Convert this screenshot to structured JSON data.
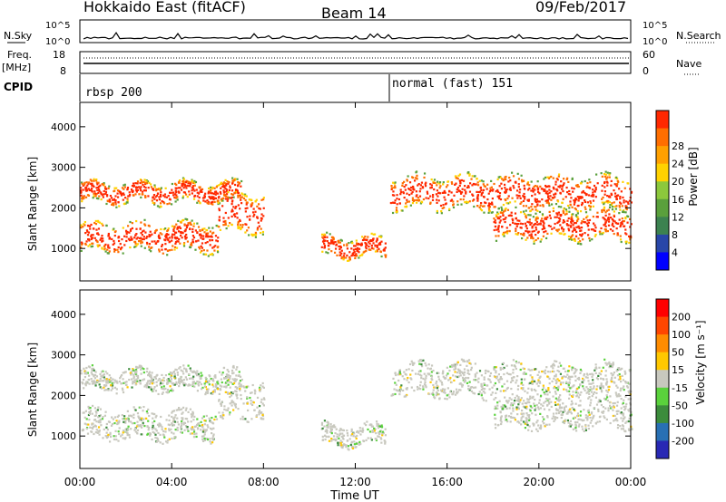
{
  "header": {
    "station": "Hokkaido East (fitACF)",
    "beam": "Beam 14",
    "date": "09/Feb/2017"
  },
  "noise_panel": {
    "left_label": "N.Sky",
    "right_label": "N.Search",
    "left_ticks": [
      "10^5",
      "10^0"
    ],
    "right_ticks": [
      "10^5",
      "10^0"
    ]
  },
  "freq_panel": {
    "left_label_1": "Freq.",
    "left_label_2": "[MHz]",
    "right_label": "Nave",
    "left_ticks": [
      "18",
      "8"
    ],
    "right_ticks": [
      "60",
      "0"
    ]
  },
  "cpid": {
    "label": "CPID",
    "modes": [
      {
        "name": "rbsp 200",
        "start_hour": 0
      },
      {
        "name": "normal (fast) 151",
        "start_hour": 13.5
      }
    ]
  },
  "chart_data": [
    {
      "type": "heatmap",
      "panel": "power",
      "ylabel": "Slant Range [km]",
      "y_ticks": [
        "1000",
        "2000",
        "3000",
        "4000"
      ],
      "ylim": [
        200,
        4600
      ],
      "xlim_hours": [
        0,
        24
      ],
      "colorbar": {
        "title": "Power [dB]",
        "tick_labels": [
          "4",
          "8",
          "12",
          "16",
          "20",
          "24",
          "28"
        ],
        "colors": [
          "#0000ff",
          "#2846a8",
          "#3c8250",
          "#5aa03c",
          "#8cc83c",
          "#ffd200",
          "#ffa000",
          "#ff6e00",
          "#ff2800"
        ]
      },
      "echo_bands": [
        {
          "from": 0.0,
          "to": 6.0,
          "center": 1300,
          "width": 350
        },
        {
          "from": 0.0,
          "to": 7.0,
          "center": 2400,
          "width": 250
        },
        {
          "from": 6.0,
          "to": 8.0,
          "center": 1900,
          "width": 500
        },
        {
          "from": 10.5,
          "to": 13.3,
          "center": 1050,
          "width": 250
        },
        {
          "from": 13.5,
          "to": 24.0,
          "center": 2400,
          "width": 400
        },
        {
          "from": 18.0,
          "to": 24.0,
          "center": 1600,
          "width": 350
        }
      ]
    },
    {
      "type": "heatmap",
      "panel": "velocity",
      "ylabel": "Slant Range [km]",
      "y_ticks": [
        "1000",
        "2000",
        "3000",
        "4000"
      ],
      "ylim": [
        200,
        4600
      ],
      "xlim_hours": [
        0,
        24
      ],
      "colorbar": {
        "title": "Velocity [m s⁻¹]",
        "tick_labels": [
          "200",
          "100",
          "50",
          "15",
          "-15",
          "-50",
          "-100",
          "-200"
        ],
        "colors": [
          "#2828b4",
          "#2870b4",
          "#3c8c3c",
          "#5ad23c",
          "#c8c8be",
          "#ffc800",
          "#ff8c00",
          "#ff4600",
          "#ff0000"
        ]
      }
    }
  ],
  "x_axis": {
    "label": "Time UT",
    "tick_labels": [
      "00:00",
      "04:00",
      "08:00",
      "12:00",
      "16:00",
      "20:00",
      "00:00"
    ]
  }
}
